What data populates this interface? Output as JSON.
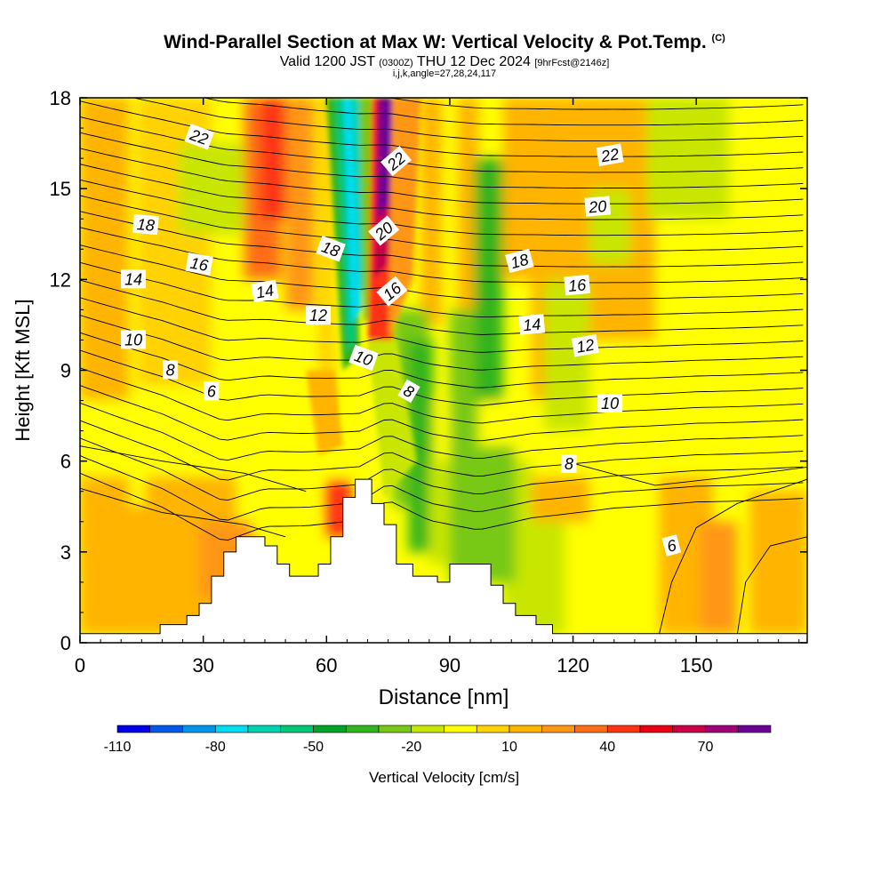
{
  "header": {
    "title": "Wind-Parallel Section at Max W: Vertical Velocity & Pot.Temp.",
    "copyright": "(C)",
    "valid_prefix": "Valid 1200 JST",
    "valid_utc": "(0300Z)",
    "valid_date": "THU 12 Dec 2024",
    "forecast": "[9hrFcst@2146z]",
    "params": "i,j,k,angle=27,28,24,117"
  },
  "chart_data": {
    "type": "heatmap",
    "xlabel": "Distance [nm]",
    "ylabel": "Height [Kft MSL]",
    "xlim": [
      0,
      177
    ],
    "ylim": [
      0,
      18
    ],
    "x_ticks": [
      "0",
      "30",
      "60",
      "90",
      "120",
      "150"
    ],
    "y_ticks": [
      "0",
      "3",
      "6",
      "9",
      "12",
      "15",
      "18"
    ],
    "colorbar": {
      "label": "Vertical Velocity [cm/s]",
      "tick_labels": [
        "-110",
        "-80",
        "-50",
        "-20",
        "10",
        "40",
        "70"
      ],
      "colors": [
        "#0000e8",
        "#005ae8",
        "#0096f0",
        "#00dcf0",
        "#00d2b4",
        "#00c878",
        "#00a528",
        "#32b41e",
        "#78c814",
        "#c8e600",
        "#ffff00",
        "#ffd200",
        "#ffb400",
        "#ff9614",
        "#ff6e14",
        "#ff3214",
        "#e80014",
        "#c80046",
        "#a00078",
        "#6e0096"
      ]
    },
    "terrain_kft": [
      [
        0,
        0.3
      ],
      [
        19.5,
        0.3
      ],
      [
        19.5,
        0.6
      ],
      [
        26,
        0.6
      ],
      [
        26,
        0.9
      ],
      [
        29,
        0.9
      ],
      [
        29,
        1.3
      ],
      [
        32,
        1.3
      ],
      [
        32,
        2.2
      ],
      [
        35,
        2.2
      ],
      [
        35,
        3
      ],
      [
        38,
        3
      ],
      [
        38,
        3.5
      ],
      [
        45,
        3.5
      ],
      [
        45,
        3.2
      ],
      [
        48,
        3.2
      ],
      [
        48,
        2.6
      ],
      [
        51,
        2.6
      ],
      [
        51,
        2.2
      ],
      [
        58,
        2.2
      ],
      [
        58,
        2.6
      ],
      [
        61,
        2.6
      ],
      [
        61,
        3.5
      ],
      [
        64,
        3.5
      ],
      [
        64,
        4.8
      ],
      [
        67,
        4.8
      ],
      [
        67,
        5.4
      ],
      [
        71,
        5.4
      ],
      [
        71,
        4.6
      ],
      [
        74,
        4.6
      ],
      [
        74,
        3.9
      ],
      [
        77,
        3.9
      ],
      [
        77,
        2.6
      ],
      [
        81,
        2.6
      ],
      [
        81,
        2.2
      ],
      [
        87,
        2.2
      ],
      [
        87,
        2
      ],
      [
        90,
        2
      ],
      [
        90,
        2.6
      ],
      [
        100,
        2.6
      ],
      [
        100,
        1.9
      ],
      [
        103,
        1.9
      ],
      [
        103,
        1.3
      ],
      [
        106,
        1.3
      ],
      [
        106,
        0.9
      ],
      [
        111,
        0.9
      ],
      [
        111,
        0.6
      ],
      [
        115,
        0.6
      ],
      [
        115,
        0.3
      ],
      [
        177,
        0.3
      ]
    ],
    "isentrope_labels": [
      {
        "text": "22",
        "x": 29,
        "y": 16.7,
        "angle": 20
      },
      {
        "text": "22",
        "x": 77,
        "y": 15.9,
        "angle": -40
      },
      {
        "text": "22",
        "x": 129,
        "y": 16.1,
        "angle": -10
      },
      {
        "text": "20",
        "x": 74,
        "y": 13.6,
        "angle": -40
      },
      {
        "text": "20",
        "x": 126,
        "y": 14.4,
        "angle": -5
      },
      {
        "text": "18",
        "x": 16,
        "y": 13.8,
        "angle": 5
      },
      {
        "text": "18",
        "x": 61,
        "y": 13.0,
        "angle": 20
      },
      {
        "text": "18",
        "x": 107,
        "y": 12.6,
        "angle": -15
      },
      {
        "text": "16",
        "x": 29,
        "y": 12.5,
        "angle": 10
      },
      {
        "text": "16",
        "x": 76,
        "y": 11.6,
        "angle": -40
      },
      {
        "text": "16",
        "x": 121,
        "y": 11.8,
        "angle": -5
      },
      {
        "text": "14",
        "x": 13,
        "y": 12.0,
        "angle": 0
      },
      {
        "text": "14",
        "x": 45,
        "y": 11.6,
        "angle": -10
      },
      {
        "text": "14",
        "x": 110,
        "y": 10.5,
        "angle": -5
      },
      {
        "text": "12",
        "x": 58,
        "y": 10.8,
        "angle": 0
      },
      {
        "text": "12",
        "x": 123,
        "y": 9.8,
        "angle": -10
      },
      {
        "text": "10",
        "x": 13,
        "y": 10.0,
        "angle": 0
      },
      {
        "text": "10",
        "x": 69,
        "y": 9.4,
        "angle": 20
      },
      {
        "text": "10",
        "x": 129,
        "y": 7.9,
        "angle": 0
      },
      {
        "text": "8",
        "x": 22,
        "y": 9.0,
        "angle": 0
      },
      {
        "text": "8",
        "x": 80,
        "y": 8.3,
        "angle": 30
      },
      {
        "text": "8",
        "x": 119,
        "y": 5.9,
        "angle": 0
      },
      {
        "text": "6",
        "x": 32,
        "y": 8.3,
        "angle": 0
      },
      {
        "text": "6",
        "x": 144,
        "y": 3.2,
        "angle": -15
      }
    ]
  }
}
